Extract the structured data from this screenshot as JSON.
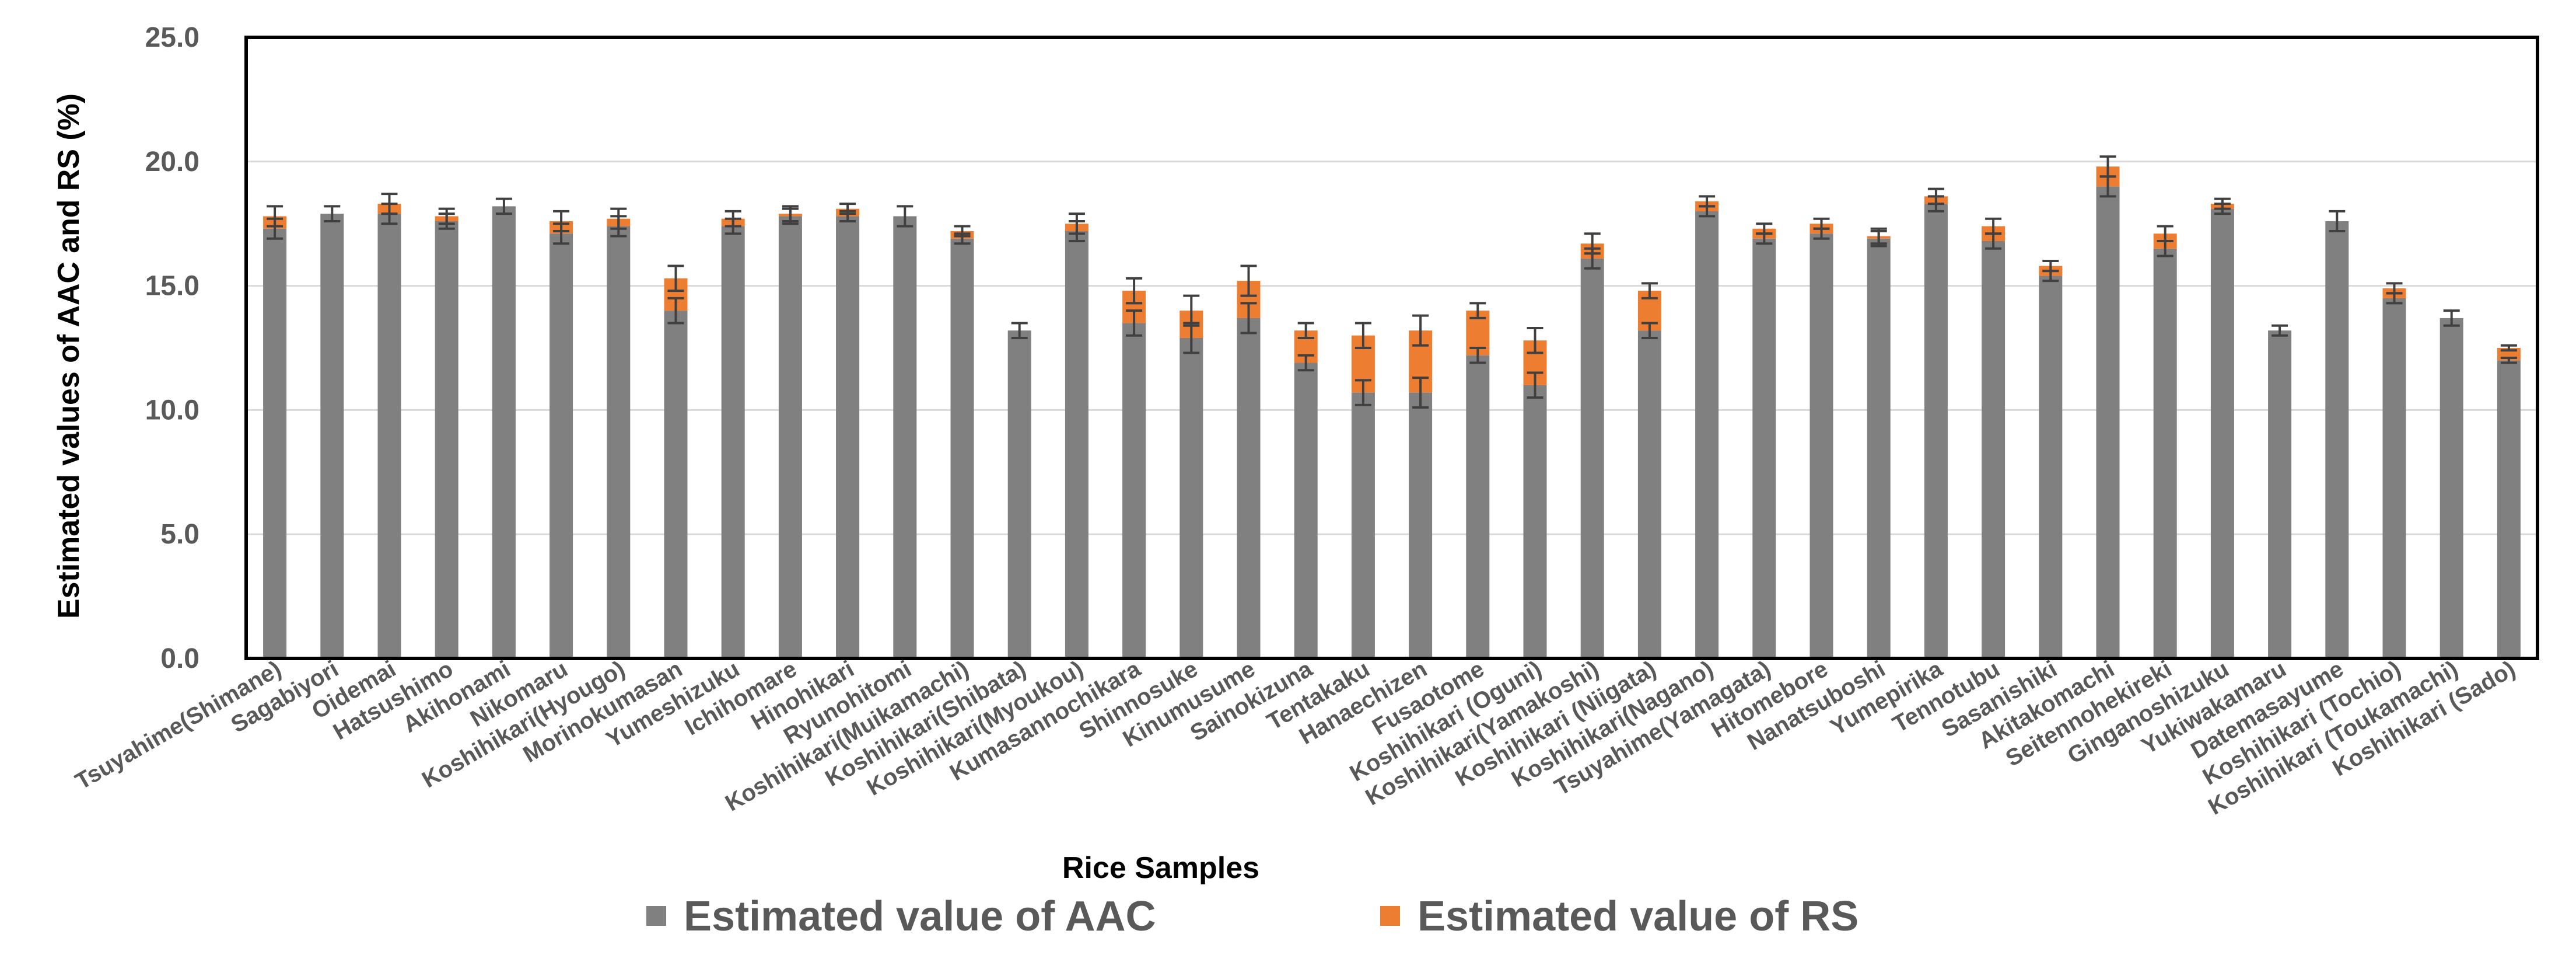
{
  "chart_data": {
    "type": "bar",
    "stacked": true,
    "xlabel": "Rice Samples",
    "ylabel": "Estimated values of AAC and RS (%)",
    "ylim": [
      0,
      25
    ],
    "yticks": [
      "0.0",
      "5.0",
      "10.0",
      "15.0",
      "20.0",
      "25.0"
    ],
    "grid": true,
    "legend_position": "bottom",
    "categories": [
      "Tsuyahime(Shimane)",
      "Sagabiyori",
      "Oidemai",
      "Hatsushimo",
      "Akihonami",
      "Nikomaru",
      "Koshihikari(Hyougo)",
      "Morinokumasan",
      "Yumeshizuku",
      "Ichihomare",
      "Hinohikari",
      "Ryunohitomi",
      "Koshihikari(Muikamachi)",
      "Koshihikari(Shibata)",
      "Koshihikari(Myoukou)",
      "Kumasannochikara",
      "Shinnosuke",
      "Kinumusume",
      "Sainokizuna",
      "Tentakaku",
      "Hanaechizen",
      "Fusaotome",
      "Koshihikari (Oguni)",
      "Koshihikari(Yamakoshi)",
      "Koshihikari (Niigata)",
      "Koshihikari(Nagano)",
      "Tsuyahime(Yamagata)",
      "Hitomebore",
      "Nanatsuboshi",
      "Yumepirika",
      "Tennotubu",
      "Sasanishiki",
      "Akitakomachi",
      "Seitennohekireki",
      "Ginganoshizuku",
      "Yukiwakamaru",
      "Datemasayume",
      "Koshihikari (Tochio)",
      "Koshihikari (Toukamachi)",
      "Koshihikari (Sado)"
    ],
    "series": [
      {
        "name": "Estimated value of AAC",
        "color": "#808080",
        "values": [
          17.3,
          17.9,
          17.9,
          17.6,
          18.2,
          17.1,
          17.4,
          14.0,
          17.4,
          17.8,
          17.8,
          17.8,
          16.9,
          13.2,
          17.2,
          13.5,
          12.9,
          13.7,
          11.9,
          10.7,
          10.7,
          12.2,
          11.0,
          16.1,
          13.2,
          18.0,
          16.9,
          17.1,
          16.9,
          18.3,
          16.8,
          15.4,
          19.0,
          16.5,
          18.1,
          13.2,
          17.6,
          14.5,
          13.7,
          12.0
        ]
      },
      {
        "name": "Estimated value of RS",
        "color": "#ED7D31",
        "values": [
          0.5,
          0.0,
          0.4,
          0.2,
          0.0,
          0.5,
          0.3,
          1.3,
          0.3,
          0.1,
          0.3,
          0.0,
          0.3,
          0.0,
          0.3,
          1.3,
          1.1,
          1.5,
          1.3,
          2.3,
          2.5,
          1.8,
          1.8,
          0.6,
          1.6,
          0.4,
          0.4,
          0.4,
          0.1,
          0.3,
          0.6,
          0.4,
          0.8,
          0.6,
          0.2,
          0.0,
          0.0,
          0.4,
          0.0,
          0.5
        ]
      }
    ],
    "error": [
      0.4,
      0.3,
      0.4,
      0.3,
      0.3,
      0.4,
      0.4,
      0.5,
      0.3,
      0.3,
      0.2,
      0.4,
      0.2,
      0.3,
      0.4,
      0.5,
      0.6,
      0.6,
      0.3,
      0.5,
      0.6,
      0.3,
      0.5,
      0.4,
      0.3,
      0.2,
      0.2,
      0.2,
      0.3,
      0.3,
      0.3,
      0.2,
      0.4,
      0.3,
      0.2,
      0.2,
      0.4,
      0.2,
      0.3,
      0.1
    ]
  }
}
